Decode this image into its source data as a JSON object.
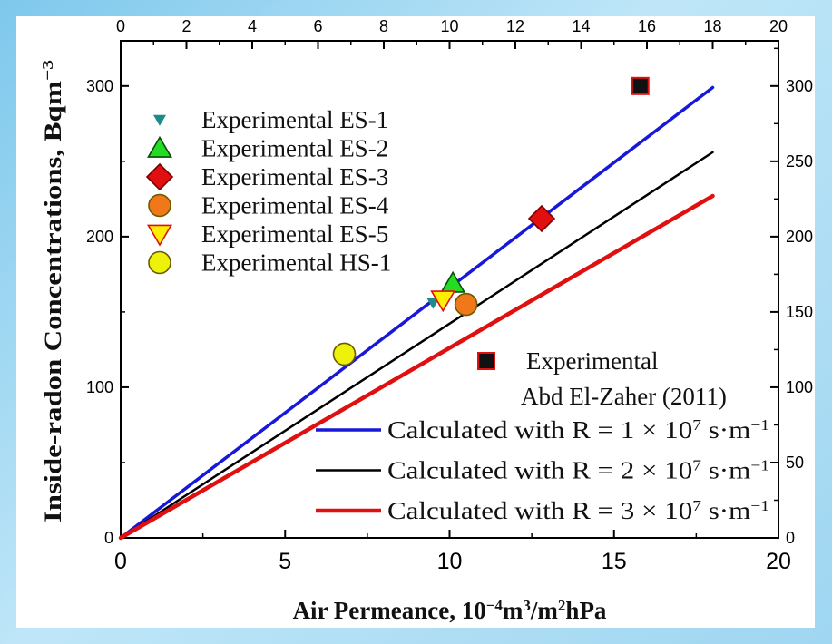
{
  "chart_data": {
    "type": "scatter",
    "xlabel": {
      "main": "Air Permeance, 10",
      "sup1": "−4",
      "mid": "m",
      "sup2": "3",
      "mid2": "/m",
      "sup3": "2",
      "tail": "hPa"
    },
    "ylabel": {
      "main": "Inside-radon Concentrations, Bqm",
      "sup": "−3"
    },
    "xlim": [
      0,
      20
    ],
    "ylim": [
      0,
      330
    ],
    "x_ticks": [
      0,
      5,
      10,
      15,
      20
    ],
    "y_ticks": [
      0,
      100,
      200,
      300
    ],
    "top_ticks": [
      0,
      2,
      4,
      6,
      8,
      10,
      12,
      14,
      16,
      18,
      20
    ],
    "right_ticks": [
      0,
      50,
      100,
      150,
      200,
      250,
      300
    ],
    "grid": false,
    "legend_position": "top-left",
    "series": [
      {
        "name": "Experimental ES-1",
        "marker": "triangle-down-small",
        "color": "#1f8a8a",
        "points": [
          [
            9.5,
            156
          ]
        ]
      },
      {
        "name": "Experimental ES-2",
        "marker": "triangle-up",
        "color": "#22dd22",
        "points": [
          [
            10.1,
            169
          ]
        ]
      },
      {
        "name": "Experimental ES-3",
        "marker": "diamond",
        "color": "#e01010",
        "points": [
          [
            12.8,
            212
          ]
        ]
      },
      {
        "name": "Experimental ES-4",
        "marker": "circle",
        "color": "#f07818",
        "points": [
          [
            10.5,
            155
          ]
        ]
      },
      {
        "name": "Experimental ES-5",
        "marker": "triangle-down",
        "color": "#ffee00",
        "edge": "#e01010",
        "points": [
          [
            9.8,
            158
          ]
        ]
      },
      {
        "name": "Experimental HS-1",
        "marker": "circle",
        "color": "#eef20a",
        "points": [
          [
            6.8,
            122
          ]
        ]
      },
      {
        "name": "Experimental",
        "name2": "Abd El-Zaher (2011)",
        "marker": "square",
        "color": "#111111",
        "edge": "#e01010",
        "points": [
          [
            15.8,
            300
          ]
        ]
      }
    ],
    "lines": [
      {
        "label": "Calculated with R = 1 × 10",
        "exp": "7",
        "unit": " s·m",
        "unit_exp": "−1",
        "color": "#1818d8",
        "width": 3.5,
        "x": [
          0,
          18
        ],
        "y": [
          0,
          299
        ]
      },
      {
        "label": "Calculated with R = 2 × 10",
        "exp": "7",
        "unit": " s·m",
        "unit_exp": "−1",
        "color": "#000000",
        "width": 2.5,
        "x": [
          0,
          18
        ],
        "y": [
          0,
          256
        ]
      },
      {
        "label": "Calculated with R = 3 × 10",
        "exp": "7",
        "unit": " s·m",
        "unit_exp": "−1",
        "color": "#e01010",
        "width": 4.5,
        "x": [
          0,
          18
        ],
        "y": [
          0,
          227
        ]
      }
    ]
  }
}
